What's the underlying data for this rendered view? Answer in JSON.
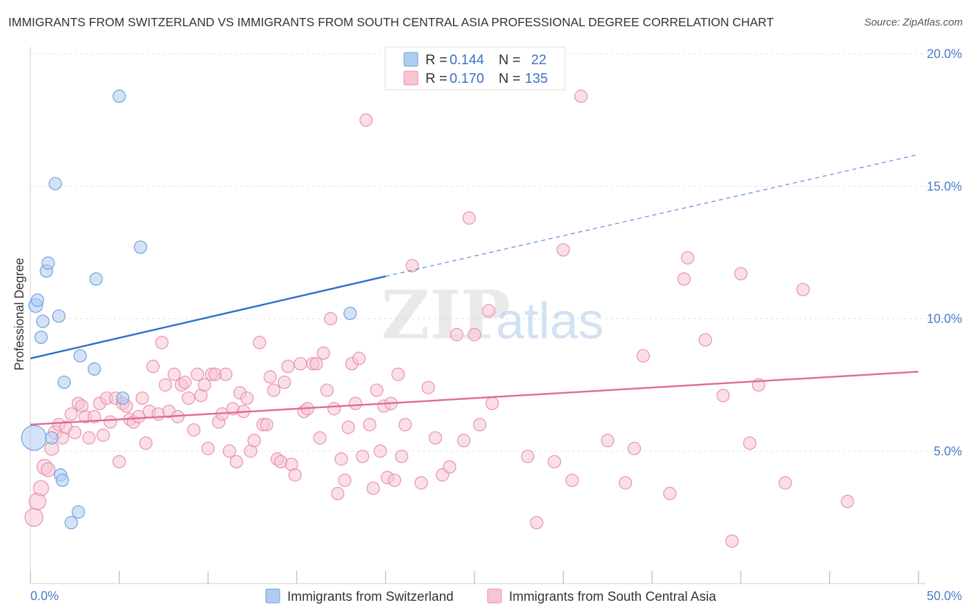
{
  "title": "IMMIGRANTS FROM SWITZERLAND VS IMMIGRANTS FROM SOUTH CENTRAL ASIA PROFESSIONAL DEGREE CORRELATION CHART",
  "source": "Source: ZipAtlas.com",
  "watermark": {
    "zip": "ZIP",
    "atlas": "atlas"
  },
  "colors": {
    "blue_fill": "#aecbf0",
    "blue_stroke": "#6f9fe0",
    "blue_line": "#2f6fcc",
    "pink_fill": "#f6c4d3",
    "pink_stroke": "#e98fab",
    "pink_line": "#e06b98"
  },
  "legend": {
    "r_label": "R =",
    "n_label": "N =",
    "series1_r": "0.144",
    "series1_n": "22",
    "series2_r": "0.170",
    "series2_n": "135"
  },
  "chart_data": {
    "type": "scatter",
    "title": "IMMIGRANTS FROM SWITZERLAND VS IMMIGRANTS FROM SOUTH CENTRAL ASIA PROFESSIONAL DEGREE CORRELATION CHART",
    "xlabel": "",
    "ylabel": "Professional Degree",
    "xlim": [
      0,
      50
    ],
    "ylim": [
      0,
      20.5
    ],
    "x_tick_labels": [
      "0.0%",
      "50.0%"
    ],
    "y_ticks": [
      5,
      10,
      15,
      20
    ],
    "y_tick_labels": [
      "5.0%",
      "10.0%",
      "15.0%",
      "20.0%"
    ],
    "grid": true,
    "legend_position": "top-center",
    "series": [
      {
        "name": "Immigrants from Switzerland",
        "r": 0.144,
        "n": 22,
        "trend": {
          "x0": 0,
          "y0": 8.5,
          "x1": 20,
          "y1": 11.6,
          "dashed_to_x": 50,
          "dashed_to_y": 16.2
        },
        "points": [
          [
            0.2,
            5.5,
            18
          ],
          [
            0.3,
            10.5,
            10
          ],
          [
            0.4,
            10.7,
            9
          ],
          [
            0.6,
            9.3,
            9
          ],
          [
            0.7,
            9.9,
            9
          ],
          [
            0.9,
            11.8,
            9
          ],
          [
            1.0,
            12.1,
            9
          ],
          [
            1.2,
            5.5,
            9
          ],
          [
            1.4,
            15.1,
            9
          ],
          [
            1.6,
            10.1,
            9
          ],
          [
            1.7,
            4.1,
            9
          ],
          [
            1.8,
            3.9,
            9
          ],
          [
            1.9,
            7.6,
            9
          ],
          [
            2.3,
            2.3,
            9
          ],
          [
            2.7,
            2.7,
            9
          ],
          [
            2.8,
            8.6,
            9
          ],
          [
            3.6,
            8.1,
            9
          ],
          [
            3.7,
            11.5,
            9
          ],
          [
            5.0,
            18.4,
            9
          ],
          [
            5.2,
            7.0,
            9
          ],
          [
            6.2,
            12.7,
            9
          ],
          [
            18.0,
            10.2,
            9
          ]
        ]
      },
      {
        "name": "Immigrants from South Central Asia",
        "r": 0.17,
        "n": 135,
        "trend": {
          "x0": 0,
          "y0": 6.0,
          "x1": 50,
          "y1": 8.0
        },
        "points": [
          [
            0.2,
            2.5,
            13
          ],
          [
            0.4,
            3.1,
            12
          ],
          [
            0.6,
            3.6,
            11
          ],
          [
            0.8,
            4.4,
            11
          ],
          [
            1.0,
            4.3,
            10
          ],
          [
            1.2,
            5.1,
            10
          ],
          [
            1.4,
            5.7,
            10
          ],
          [
            1.6,
            6.0,
            9
          ],
          [
            1.8,
            5.5,
            9
          ],
          [
            2.0,
            5.9,
            9
          ],
          [
            2.3,
            6.4,
            9
          ],
          [
            2.5,
            5.7,
            9
          ],
          [
            2.7,
            6.8,
            9
          ],
          [
            2.9,
            6.7,
            9
          ],
          [
            3.1,
            6.3,
            9
          ],
          [
            3.3,
            5.5,
            9
          ],
          [
            3.6,
            6.3,
            9
          ],
          [
            3.9,
            6.8,
            9
          ],
          [
            4.1,
            5.6,
            9
          ],
          [
            4.3,
            7.0,
            9
          ],
          [
            4.5,
            6.1,
            9
          ],
          [
            4.8,
            7.0,
            9
          ],
          [
            5.0,
            4.6,
            9
          ],
          [
            5.2,
            6.8,
            9
          ],
          [
            5.4,
            6.7,
            9
          ],
          [
            5.6,
            6.2,
            9
          ],
          [
            5.8,
            6.1,
            9
          ],
          [
            6.1,
            6.3,
            9
          ],
          [
            6.3,
            7.0,
            9
          ],
          [
            6.5,
            5.3,
            9
          ],
          [
            6.7,
            6.5,
            9
          ],
          [
            6.9,
            8.2,
            9
          ],
          [
            7.2,
            6.4,
            9
          ],
          [
            7.4,
            9.1,
            9
          ],
          [
            7.6,
            7.5,
            9
          ],
          [
            7.8,
            6.5,
            9
          ],
          [
            8.1,
            7.9,
            9
          ],
          [
            8.3,
            6.3,
            9
          ],
          [
            8.5,
            7.5,
            9
          ],
          [
            8.7,
            7.6,
            9
          ],
          [
            8.9,
            7.0,
            9
          ],
          [
            9.2,
            5.8,
            9
          ],
          [
            9.4,
            7.9,
            9
          ],
          [
            9.6,
            7.1,
            9
          ],
          [
            9.8,
            7.5,
            9
          ],
          [
            10.0,
            5.1,
            9
          ],
          [
            10.2,
            7.9,
            9
          ],
          [
            10.4,
            7.9,
            9
          ],
          [
            10.6,
            6.1,
            9
          ],
          [
            10.8,
            6.4,
            9
          ],
          [
            11.0,
            7.9,
            9
          ],
          [
            11.2,
            5.0,
            9
          ],
          [
            11.4,
            6.6,
            9
          ],
          [
            11.6,
            4.6,
            9
          ],
          [
            11.8,
            7.2,
            9
          ],
          [
            12.0,
            6.5,
            9
          ],
          [
            12.2,
            7.0,
            9
          ],
          [
            12.4,
            5.0,
            9
          ],
          [
            12.6,
            5.4,
            9
          ],
          [
            12.9,
            9.1,
            9
          ],
          [
            13.1,
            6.0,
            9
          ],
          [
            13.3,
            6.0,
            9
          ],
          [
            13.5,
            7.8,
            9
          ],
          [
            13.7,
            7.3,
            9
          ],
          [
            13.9,
            4.7,
            9
          ],
          [
            14.1,
            4.6,
            9
          ],
          [
            14.3,
            7.6,
            9
          ],
          [
            14.5,
            8.2,
            9
          ],
          [
            14.7,
            4.5,
            9
          ],
          [
            14.9,
            4.1,
            9
          ],
          [
            15.2,
            8.3,
            9
          ],
          [
            15.4,
            6.5,
            9
          ],
          [
            15.6,
            6.6,
            9
          ],
          [
            15.9,
            8.3,
            9
          ],
          [
            16.1,
            8.3,
            9
          ],
          [
            16.3,
            5.5,
            9
          ],
          [
            16.5,
            8.7,
            9
          ],
          [
            16.7,
            7.3,
            9
          ],
          [
            16.9,
            10.0,
            9
          ],
          [
            17.1,
            6.6,
            9
          ],
          [
            17.3,
            3.4,
            9
          ],
          [
            17.5,
            4.7,
            9
          ],
          [
            17.7,
            3.9,
            9
          ],
          [
            17.9,
            5.9,
            9
          ],
          [
            18.1,
            8.3,
            9
          ],
          [
            18.3,
            6.8,
            9
          ],
          [
            18.5,
            8.5,
            9
          ],
          [
            18.7,
            4.8,
            9
          ],
          [
            18.9,
            17.5,
            9
          ],
          [
            19.1,
            6.0,
            9
          ],
          [
            19.3,
            3.6,
            9
          ],
          [
            19.5,
            7.3,
            9
          ],
          [
            19.7,
            5.0,
            9
          ],
          [
            19.9,
            6.7,
            9
          ],
          [
            20.1,
            4.0,
            9
          ],
          [
            20.3,
            6.8,
            9
          ],
          [
            20.5,
            3.9,
            9
          ],
          [
            20.7,
            7.9,
            9
          ],
          [
            20.9,
            4.8,
            9
          ],
          [
            21.1,
            6.0,
            9
          ],
          [
            21.5,
            12.0,
            9
          ],
          [
            22.0,
            3.8,
            9
          ],
          [
            22.4,
            7.4,
            9
          ],
          [
            22.8,
            5.5,
            9
          ],
          [
            23.2,
            4.1,
            9
          ],
          [
            23.6,
            4.4,
            9
          ],
          [
            24.0,
            9.4,
            9
          ],
          [
            24.4,
            5.4,
            9
          ],
          [
            24.7,
            13.8,
            9
          ],
          [
            25.0,
            9.4,
            9
          ],
          [
            25.3,
            6.0,
            9
          ],
          [
            25.8,
            10.3,
            9
          ],
          [
            26.0,
            6.8,
            9
          ],
          [
            28.0,
            4.8,
            9
          ],
          [
            28.5,
            2.3,
            9
          ],
          [
            29.5,
            4.6,
            9
          ],
          [
            30.0,
            12.6,
            9
          ],
          [
            30.5,
            3.9,
            9
          ],
          [
            31.0,
            18.4,
            9
          ],
          [
            32.5,
            5.4,
            9
          ],
          [
            33.5,
            3.8,
            9
          ],
          [
            34.0,
            5.1,
            9
          ],
          [
            34.5,
            8.6,
            9
          ],
          [
            36.0,
            3.4,
            9
          ],
          [
            36.8,
            11.5,
            9
          ],
          [
            37.0,
            12.3,
            9
          ],
          [
            38.0,
            9.2,
            9
          ],
          [
            39.0,
            7.1,
            9
          ],
          [
            39.5,
            1.6,
            9
          ],
          [
            40.0,
            11.7,
            9
          ],
          [
            40.5,
            5.3,
            9
          ],
          [
            41.0,
            7.5,
            9
          ],
          [
            42.5,
            3.8,
            9
          ],
          [
            43.5,
            11.1,
            9
          ],
          [
            46.0,
            3.1,
            9
          ]
        ]
      }
    ]
  }
}
